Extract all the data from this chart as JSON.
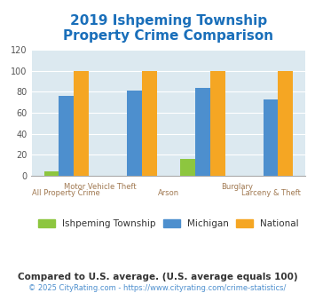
{
  "title": "2019 Ishpeming Township\nProperty Crime Comparison",
  "title_color": "#1a6fba",
  "title_fontsize": 11,
  "series": {
    "Ishpeming Township": [
      4,
      0,
      16,
      0
    ],
    "Michigan": [
      76,
      81,
      84,
      73
    ],
    "National": [
      100,
      100,
      100,
      100
    ]
  },
  "colors": {
    "Ishpeming Township": "#8dc63f",
    "Michigan": "#4d8fce",
    "National": "#f5a623"
  },
  "ylim": [
    0,
    120
  ],
  "yticks": [
    0,
    20,
    40,
    60,
    80,
    100,
    120
  ],
  "plot_bg": "#dce9f0",
  "grid_color": "#ffffff",
  "footer_note": "Compared to U.S. average. (U.S. average equals 100)",
  "footer_note_color": "#333333",
  "footer_note_fontsize": 7.5,
  "copyright_text": "© 2025 CityRating.com - https://www.cityrating.com/crime-statistics/",
  "copyright_color": "#4d8fce",
  "copyright_fontsize": 6,
  "legend_labels": [
    "Ishpeming Township",
    "Michigan",
    "National"
  ],
  "xlabel_color": "#a07850",
  "bar_width": 0.22
}
